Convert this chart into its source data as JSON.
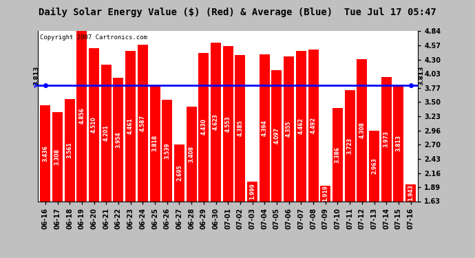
{
  "title": "Daily Solar Energy Value ($) (Red) & Average (Blue)  Tue Jul 17 05:47",
  "copyright": "Copyright 2007 Cartronics.com",
  "average": 3.813,
  "bar_color": "#FF0000",
  "avg_line_color": "#0000FF",
  "fig_bg_color": "#C0C0C0",
  "plot_bg_color": "#FFFFFF",
  "categories": [
    "06-16",
    "06-17",
    "06-18",
    "06-19",
    "06-20",
    "06-21",
    "06-22",
    "06-23",
    "06-24",
    "06-25",
    "06-26",
    "06-27",
    "06-28",
    "06-29",
    "06-30",
    "07-01",
    "07-02",
    "07-03",
    "07-04",
    "07-05",
    "07-06",
    "07-07",
    "07-08",
    "07-09",
    "07-10",
    "07-11",
    "07-12",
    "07-13",
    "07-14",
    "07-15",
    "07-16"
  ],
  "values": [
    3.436,
    3.308,
    3.561,
    4.856,
    4.51,
    4.201,
    3.954,
    4.461,
    4.587,
    3.818,
    3.539,
    2.695,
    3.408,
    4.43,
    4.623,
    4.553,
    4.385,
    1.999,
    4.394,
    4.097,
    4.355,
    4.462,
    4.492,
    1.919,
    3.386,
    3.723,
    4.308,
    2.963,
    3.973,
    3.813,
    1.943
  ],
  "yticks": [
    1.63,
    1.89,
    2.16,
    2.43,
    2.7,
    2.96,
    3.23,
    3.5,
    3.77,
    4.03,
    4.3,
    4.57,
    4.84
  ],
  "ymin": 1.63,
  "ymax": 4.84,
  "avg_label": "3.813",
  "title_fontsize": 10,
  "copyright_fontsize": 6.5,
  "tick_fontsize": 7,
  "value_fontsize": 5.5
}
